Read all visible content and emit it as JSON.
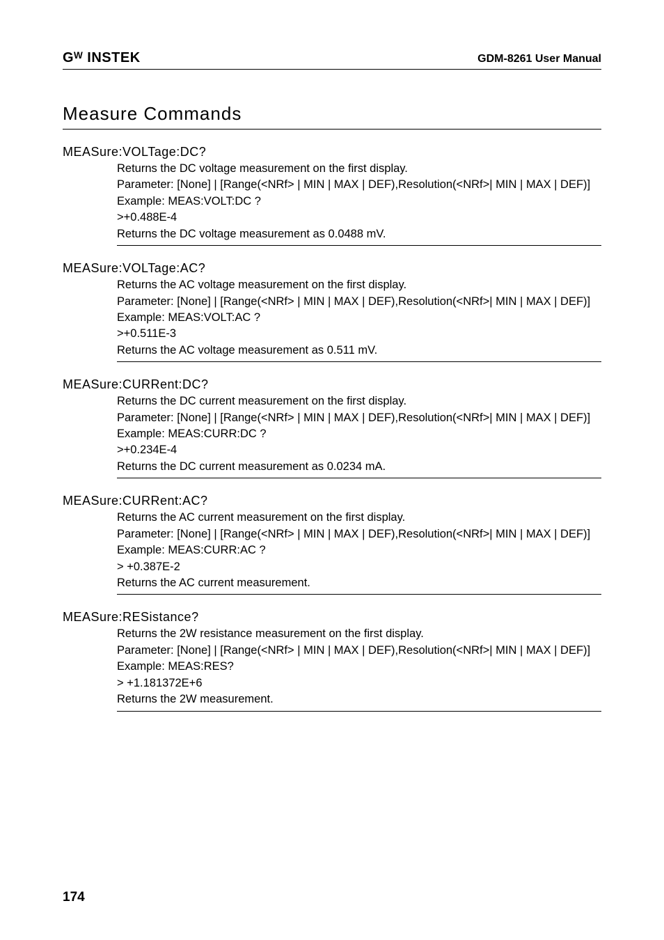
{
  "header": {
    "brand": "Gᵂ INSTEK",
    "manual_title": "GDM-8261 User Manual"
  },
  "section": {
    "title": "Measure Commands"
  },
  "commands": [
    {
      "name": "MEASure:VOLTage:DC?",
      "lines": [
        "Returns the DC voltage measurement on the first display.",
        "Parameter: [None] | [Range(<NRf> | MIN | MAX | DEF),Resolution(<NRf>| MIN | MAX | DEF)]",
        "Example: MEAS:VOLT:DC ?",
        ">+0.488E-4",
        "Returns the DC voltage measurement as 0.0488 mV."
      ]
    },
    {
      "name": "MEASure:VOLTage:AC?",
      "lines": [
        "Returns the AC voltage measurement on the first display.",
        "Parameter: [None] | [Range(<NRf> | MIN | MAX | DEF),Resolution(<NRf>| MIN | MAX | DEF)]",
        "Example: MEAS:VOLT:AC ?",
        ">+0.511E-3",
        "Returns the AC voltage measurement as 0.511 mV."
      ]
    },
    {
      "name": "MEASure:CURRent:DC?",
      "lines": [
        "Returns the DC current measurement on the first display.",
        "Parameter: [None] | [Range(<NRf> | MIN | MAX | DEF),Resolution(<NRf>| MIN | MAX | DEF)]",
        "Example: MEAS:CURR:DC ?",
        ">+0.234E-4",
        "Returns the DC current measurement as 0.0234 mA."
      ]
    },
    {
      "name": "MEASure:CURRent:AC?",
      "lines": [
        "Returns the AC current measurement on the first display.",
        "Parameter: [None] | [Range(<NRf> | MIN | MAX | DEF),Resolution(<NRf>| MIN | MAX | DEF)]",
        "Example: MEAS:CURR:AC ?",
        "> +0.387E-2",
        "Returns the AC current measurement."
      ]
    },
    {
      "name": "MEASure:RESistance?",
      "lines": [
        "Returns the 2W resistance measurement on the first display.",
        "Parameter: [None] | [Range(<NRf> | MIN | MAX | DEF),Resolution(<NRf>| MIN | MAX | DEF)]",
        "Example: MEAS:RES?",
        "> +1.181372E+6",
        "Returns the 2W measurement."
      ]
    }
  ],
  "page_number": "174"
}
